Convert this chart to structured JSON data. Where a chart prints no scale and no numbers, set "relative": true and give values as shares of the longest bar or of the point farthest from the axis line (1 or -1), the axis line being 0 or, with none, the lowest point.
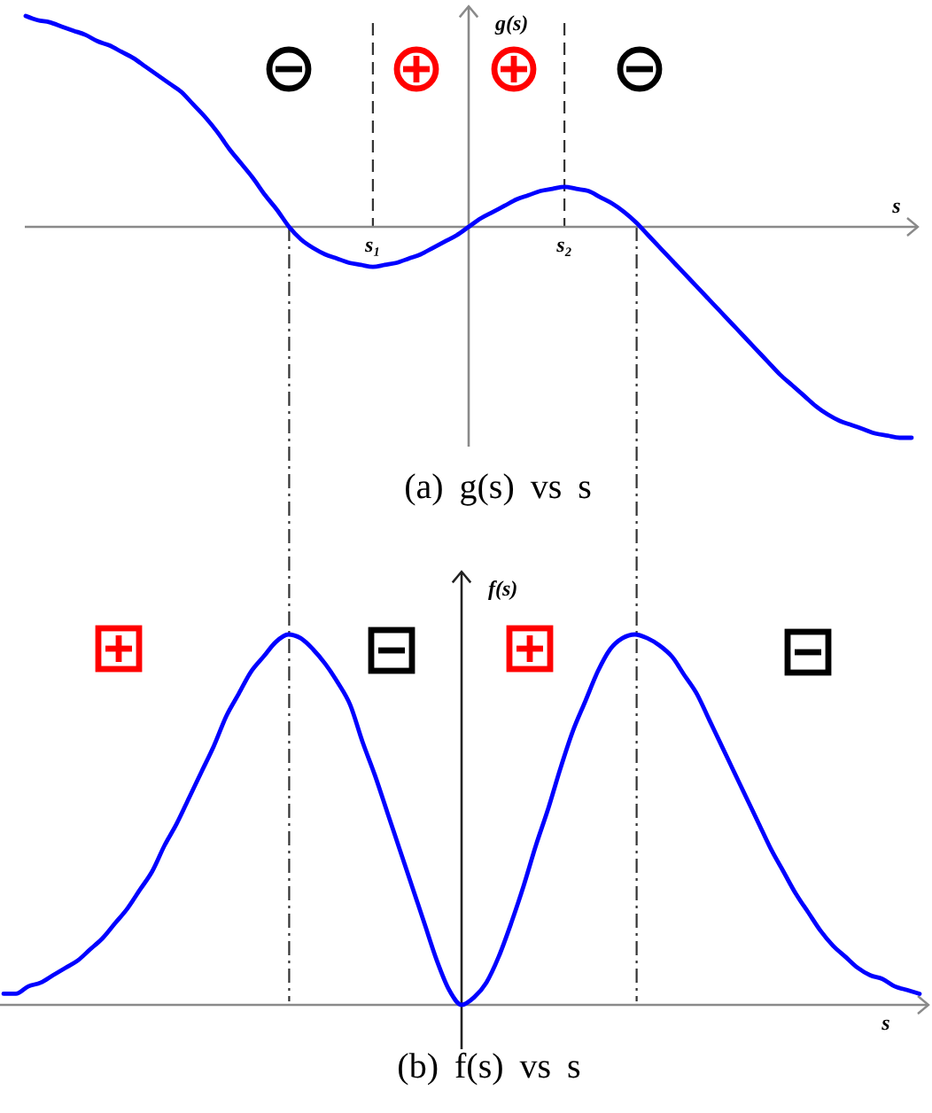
{
  "chart_data": [
    {
      "type": "line",
      "title": "(a) g(s) vs s",
      "xlabel": "s",
      "ylabel": "g(s)",
      "relative": true,
      "categories": [
        null,
        null,
        null,
        null,
        null,
        null,
        null,
        null,
        null,
        null,
        null,
        null,
        null,
        null,
        null,
        null,
        null,
        null,
        null,
        null,
        null,
        null,
        null,
        null,
        null,
        null,
        null,
        null,
        null,
        "s₁",
        null,
        null,
        null,
        null,
        null,
        null,
        null,
        null,
        null,
        null,
        null,
        null,
        null,
        null,
        null,
        "s₂",
        null,
        null,
        null,
        null,
        null,
        null,
        null,
        null,
        null,
        null,
        null,
        null,
        null,
        null,
        null,
        null,
        null,
        null,
        null,
        null,
        null,
        null,
        null,
        null,
        null,
        null,
        null,
        null,
        null
      ],
      "series": [
        {
          "color": "#0000ff",
          "values": [
            1.0,
            0.98,
            0.97,
            0.95,
            0.93,
            0.91,
            0.88,
            0.86,
            0.83,
            0.8,
            0.76,
            0.72,
            0.68,
            0.64,
            0.58,
            0.52,
            0.45,
            0.37,
            0.3,
            0.23,
            0.15,
            0.08,
            0.0,
            -0.06,
            -0.1,
            -0.13,
            -0.15,
            -0.17,
            -0.18,
            -0.19,
            -0.18,
            -0.17,
            -0.15,
            -0.13,
            -0.1,
            -0.07,
            -0.04,
            0.0,
            0.04,
            0.07,
            0.1,
            0.13,
            0.15,
            0.17,
            0.18,
            0.19,
            0.18,
            0.17,
            0.14,
            0.11,
            0.07,
            0.02,
            -0.04,
            -0.1,
            -0.16,
            -0.22,
            -0.28,
            -0.34,
            -0.4,
            -0.46,
            -0.52,
            -0.58,
            -0.64,
            -0.7,
            -0.75,
            -0.8,
            -0.85,
            -0.89,
            -0.92,
            -0.94,
            -0.96,
            -0.98,
            -0.99,
            -1.0,
            -1.0
          ]
        }
      ],
      "ref_lines": [
        {
          "axis": "x",
          "value": "s₁",
          "line_style": "dashed"
        },
        {
          "axis": "x",
          "value": "s₂",
          "line_style": "dashed"
        }
      ]
    },
    {
      "type": "line",
      "title": "(b) f(s) vs s",
      "xlabel": "s",
      "ylabel": "f(s)",
      "relative": true,
      "categories": [
        null,
        null,
        null,
        null,
        null,
        null,
        null,
        null,
        null,
        null,
        null,
        null,
        null,
        null,
        null,
        null,
        null,
        null,
        null,
        null,
        null,
        null,
        null,
        null,
        null,
        null,
        null,
        null,
        null,
        null,
        null,
        null,
        null,
        null,
        null,
        null,
        null,
        null,
        null,
        null,
        null,
        null,
        null,
        null,
        null,
        null,
        null,
        null,
        null,
        null,
        null,
        null,
        null,
        null,
        null,
        null,
        null,
        null,
        null,
        null,
        null,
        null,
        null,
        null,
        null,
        null,
        null,
        null,
        null,
        null,
        null,
        null,
        null,
        null,
        null
      ],
      "series": [
        {
          "color": "#0000ff",
          "values": [
            0.03,
            0.03,
            0.05,
            0.06,
            0.08,
            0.1,
            0.12,
            0.15,
            0.18,
            0.22,
            0.26,
            0.31,
            0.36,
            0.43,
            0.49,
            0.56,
            0.63,
            0.7,
            0.78,
            0.84,
            0.9,
            0.94,
            0.98,
            1.0,
            0.99,
            0.96,
            0.92,
            0.87,
            0.81,
            0.71,
            0.62,
            0.52,
            0.42,
            0.32,
            0.22,
            0.12,
            0.04,
            0.0,
            0.02,
            0.06,
            0.13,
            0.22,
            0.32,
            0.43,
            0.53,
            0.64,
            0.74,
            0.82,
            0.9,
            0.96,
            0.99,
            1.0,
            0.99,
            0.97,
            0.94,
            0.89,
            0.84,
            0.77,
            0.7,
            0.63,
            0.56,
            0.49,
            0.42,
            0.36,
            0.3,
            0.25,
            0.2,
            0.16,
            0.13,
            0.1,
            0.08,
            0.07,
            0.05,
            0.04,
            0.03
          ]
        }
      ]
    }
  ]
}
